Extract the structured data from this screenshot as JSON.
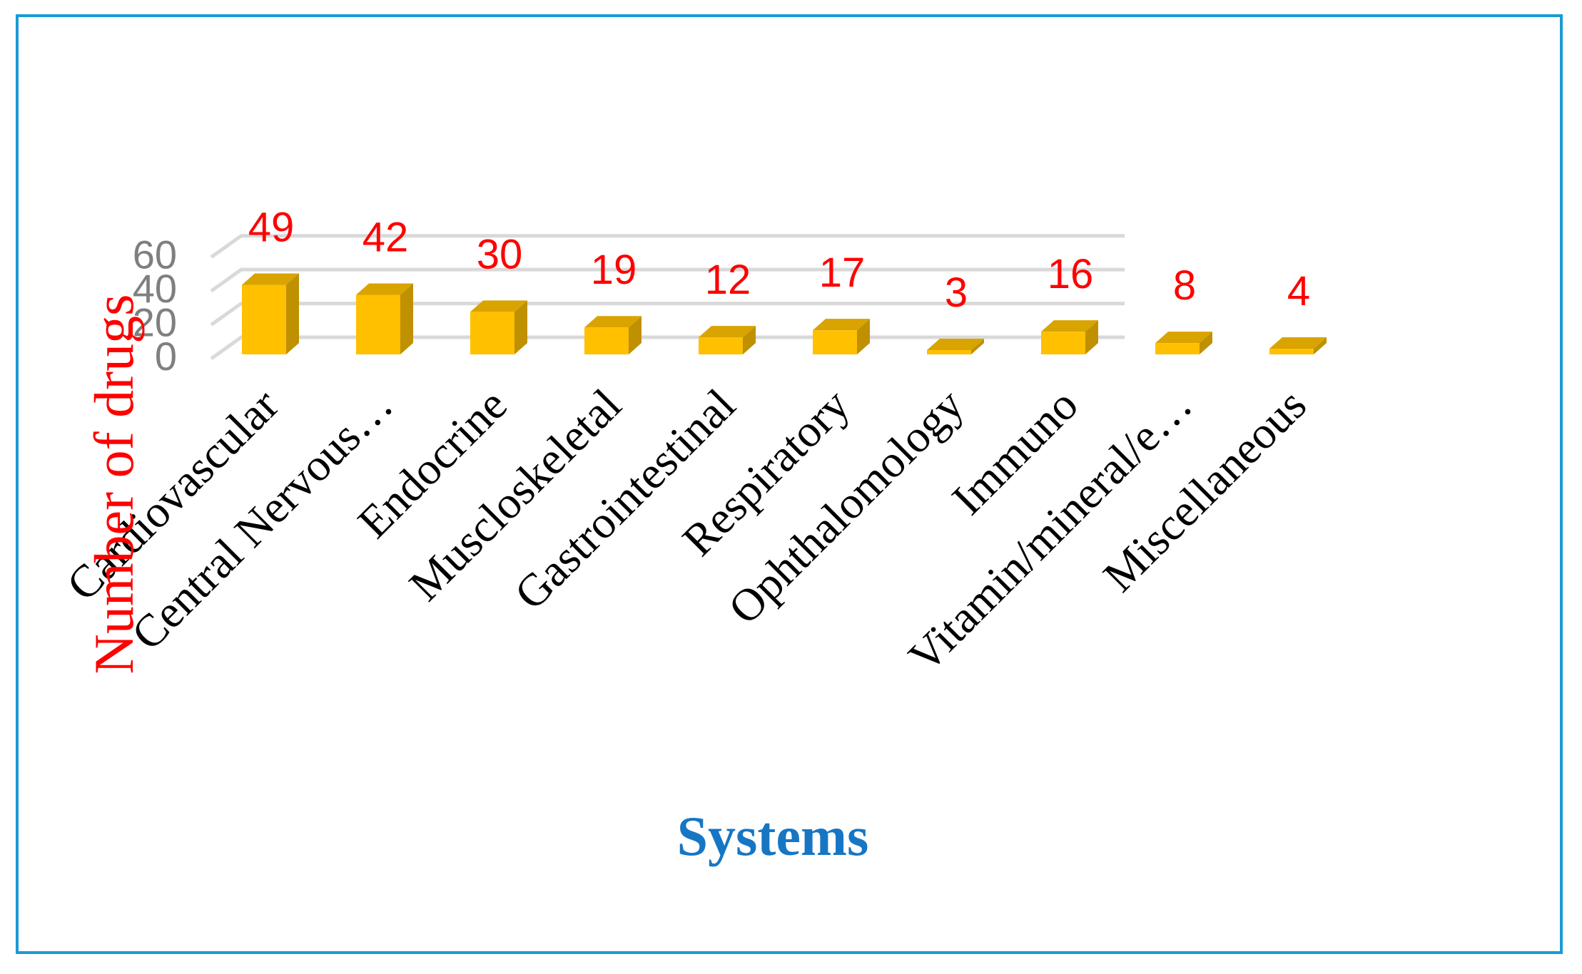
{
  "chart_data": {
    "type": "bar",
    "style": "3d-column",
    "categories": [
      "Cardiovascular",
      "Central Nervous…",
      "Endocrine",
      "Muscloskeletal",
      "Gastrointestinal",
      "Respiratory",
      "Ophthalomology",
      "Immuno",
      "Vitamin/mineral/e…",
      "Miscellaneous"
    ],
    "values": [
      49,
      42,
      30,
      19,
      12,
      17,
      3,
      16,
      8,
      4
    ],
    "title": "",
    "xlabel": "Systems",
    "ylabel": "Number of drugs",
    "ylim": [
      0,
      60
    ],
    "yticks": [
      "0",
      "20",
      "40",
      "60"
    ],
    "grid": true,
    "legend": "none",
    "colors": {
      "bar_front": "#ffc000",
      "bar_side": "#bf9000",
      "bar_top": "#d9a300",
      "data_label": "#ff0000",
      "ylabel": "#ff0000",
      "xlabel": "#1676c4",
      "frame": "#1b9ad6",
      "grid": "#d9d9d9",
      "tick": "#7f7f7f"
    }
  }
}
